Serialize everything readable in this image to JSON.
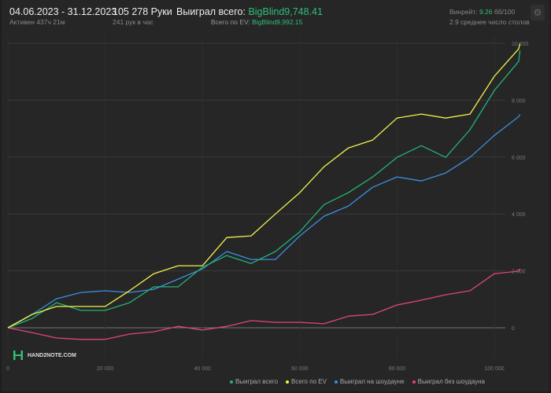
{
  "header": {
    "date_range": "04.06.2023 - 31.12.2023",
    "active": "Активен 437ч 21м",
    "hands": "105 278 Руки",
    "hands_per_hour": "241 рук в час",
    "won_label": "Выиграл всего:",
    "won_value": "BigBlind9,748.41",
    "ev_label": "Всего по EV:",
    "ev_value": "BigBlind9,992.15",
    "winrate_label": "Винрейт:",
    "winrate_value": "9.26",
    "winrate_suffix": "бб/100",
    "tables": "2.9 среднее число столов",
    "settings_icon": "gear-icon"
  },
  "logo": {
    "text": "HAND2NOTE.COM"
  },
  "colors": {
    "won": "#22b573",
    "ev": "#f2f24a",
    "showdown": "#3b8fe0",
    "nonshowdown": "#e0457b"
  },
  "chart_data": {
    "type": "line",
    "xlim": [
      0,
      105278
    ],
    "ylim": [
      -400,
      10000
    ],
    "x_ticks": [
      "0",
      "20 000",
      "40 000",
      "60 000",
      "80 000",
      "100 000"
    ],
    "x_tick_values": [
      0,
      20000,
      40000,
      60000,
      80000,
      100000
    ],
    "y_ticks": [
      "0",
      "2 000",
      "4 000",
      "6 000",
      "8 000",
      "10 000"
    ],
    "y_tick_values": [
      0,
      2000,
      4000,
      6000,
      8000,
      10000
    ],
    "grid": true,
    "legend_position": "bottom-right",
    "x": [
      0,
      5000,
      10000,
      15000,
      20000,
      25000,
      30000,
      35000,
      40000,
      45000,
      50000,
      55000,
      60000,
      65000,
      70000,
      75000,
      80000,
      85000,
      90000,
      95000,
      100000,
      105000,
      105278
    ],
    "series": [
      {
        "key": "won",
        "name": "Выиграл всего",
        "values": [
          0,
          330,
          880,
          610,
          610,
          880,
          1440,
          1440,
          2130,
          2540,
          2260,
          2680,
          3370,
          4330,
          4750,
          5300,
          5990,
          6400,
          5990,
          6960,
          8340,
          9360,
          9748
        ]
      },
      {
        "key": "ev",
        "name": "Всего по EV",
        "values": [
          0,
          470,
          750,
          750,
          750,
          1300,
          1900,
          2180,
          2180,
          3170,
          3230,
          4000,
          4750,
          5660,
          6320,
          6600,
          7370,
          7510,
          7370,
          7510,
          8840,
          9800,
          9992
        ]
      },
      {
        "key": "showdown",
        "name": "Выиграл на шоудауне",
        "values": [
          0,
          470,
          1020,
          1240,
          1300,
          1240,
          1350,
          1710,
          2070,
          2680,
          2400,
          2400,
          3230,
          3920,
          4280,
          4940,
          5300,
          5160,
          5440,
          5990,
          6760,
          7420,
          7500
        ]
      },
      {
        "key": "nonshowdown",
        "name": "Выиграл без шоудауна",
        "values": [
          0,
          -170,
          -360,
          -410,
          -410,
          -220,
          -140,
          50,
          -80,
          50,
          250,
          190,
          190,
          140,
          410,
          470,
          800,
          970,
          1160,
          1300,
          1900,
          1990,
          2070
        ]
      }
    ]
  }
}
